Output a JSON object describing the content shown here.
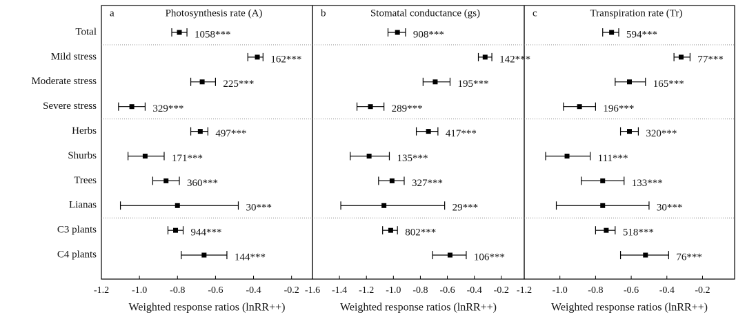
{
  "chart_data": [
    {
      "type": "forest",
      "letter": "a",
      "title": "Photosynthesis rate (A)",
      "xlabel": "Weighted response ratios (lnRR++)",
      "categories": [
        "Total",
        "Mild stress",
        "Moderate stress",
        "Severe stress",
        "Herbs",
        "Shurbs",
        "Trees",
        "Lianas",
        "C3 plants",
        "C4 plants"
      ],
      "values": [
        -0.79,
        -0.38,
        -0.67,
        -1.04,
        -0.68,
        -0.97,
        -0.86,
        -0.8,
        -0.81,
        -0.66
      ],
      "ci_low": [
        -0.83,
        -0.43,
        -0.73,
        -1.11,
        -0.73,
        -1.06,
        -0.93,
        -1.1,
        -0.85,
        -0.78
      ],
      "ci_high": [
        -0.75,
        -0.35,
        -0.6,
        -0.97,
        -0.64,
        -0.87,
        -0.79,
        -0.48,
        -0.77,
        -0.54
      ],
      "labels": [
        "1058***",
        "162***",
        "225***",
        "329***",
        "497***",
        "171***",
        "360***",
        "30***",
        "944***",
        "144***"
      ],
      "xlim": [
        -1.2,
        -0.09
      ],
      "xticks": [
        -1.2,
        {
          "value": -1.0,
          "label": "-1.0"
        },
        -0.8,
        -0.6,
        -0.4,
        -0.2
      ],
      "color": "#000000"
    },
    {
      "type": "forest",
      "letter": "b",
      "title": "Stomatal conductance (gs)",
      "xlabel": "Weighted response ratios (lnRR++)",
      "values": [
        -0.97,
        -0.32,
        -0.69,
        -1.17,
        -0.74,
        -1.18,
        -1.01,
        -1.07,
        -1.02,
        -0.58
      ],
      "ci_low": [
        -1.04,
        -0.37,
        -0.78,
        -1.27,
        -0.83,
        -1.32,
        -1.11,
        -1.39,
        -1.08,
        -0.71
      ],
      "ci_high": [
        -0.91,
        -0.27,
        -0.58,
        -1.07,
        -0.67,
        -1.03,
        -0.92,
        -0.62,
        -0.97,
        -0.46
      ],
      "labels": [
        "908***",
        "142***",
        "195***",
        "289***",
        "417***",
        "135***",
        "327***",
        "29***",
        "802***",
        "106***"
      ],
      "xlim": [
        -1.6,
        -0.03
      ],
      "xticks": [
        -1.6,
        -1.4,
        -1.2,
        {
          "value": -1.0,
          "label": "-1.0"
        },
        -0.8,
        -0.6,
        -0.4,
        -0.2
      ],
      "color": "#000000"
    },
    {
      "type": "forest",
      "letter": "c",
      "title": "Transpiration rate (Tr)",
      "xlabel": "Weighted response ratios (lnRR++)",
      "values": [
        -0.71,
        -0.32,
        -0.61,
        -0.89,
        -0.61,
        -0.96,
        -0.76,
        -0.76,
        -0.74,
        -0.52
      ],
      "ci_low": [
        -0.76,
        -0.36,
        -0.69,
        -0.98,
        -0.66,
        -1.08,
        -0.88,
        -1.02,
        -0.8,
        -0.66
      ],
      "ci_high": [
        -0.67,
        -0.27,
        -0.52,
        -0.8,
        -0.56,
        -0.83,
        -0.64,
        -0.5,
        -0.69,
        -0.39
      ],
      "labels": [
        "594***",
        "77***",
        "165***",
        "196***",
        "320***",
        "111***",
        "133***",
        "30***",
        "518***",
        "76***"
      ],
      "xlim": [
        -1.2,
        -0.02
      ],
      "xticks": [
        -1.2,
        {
          "value": -1.0,
          "label": "-1.0"
        },
        -0.8,
        -0.6,
        -0.4,
        -0.2
      ],
      "color": "#000000"
    }
  ]
}
